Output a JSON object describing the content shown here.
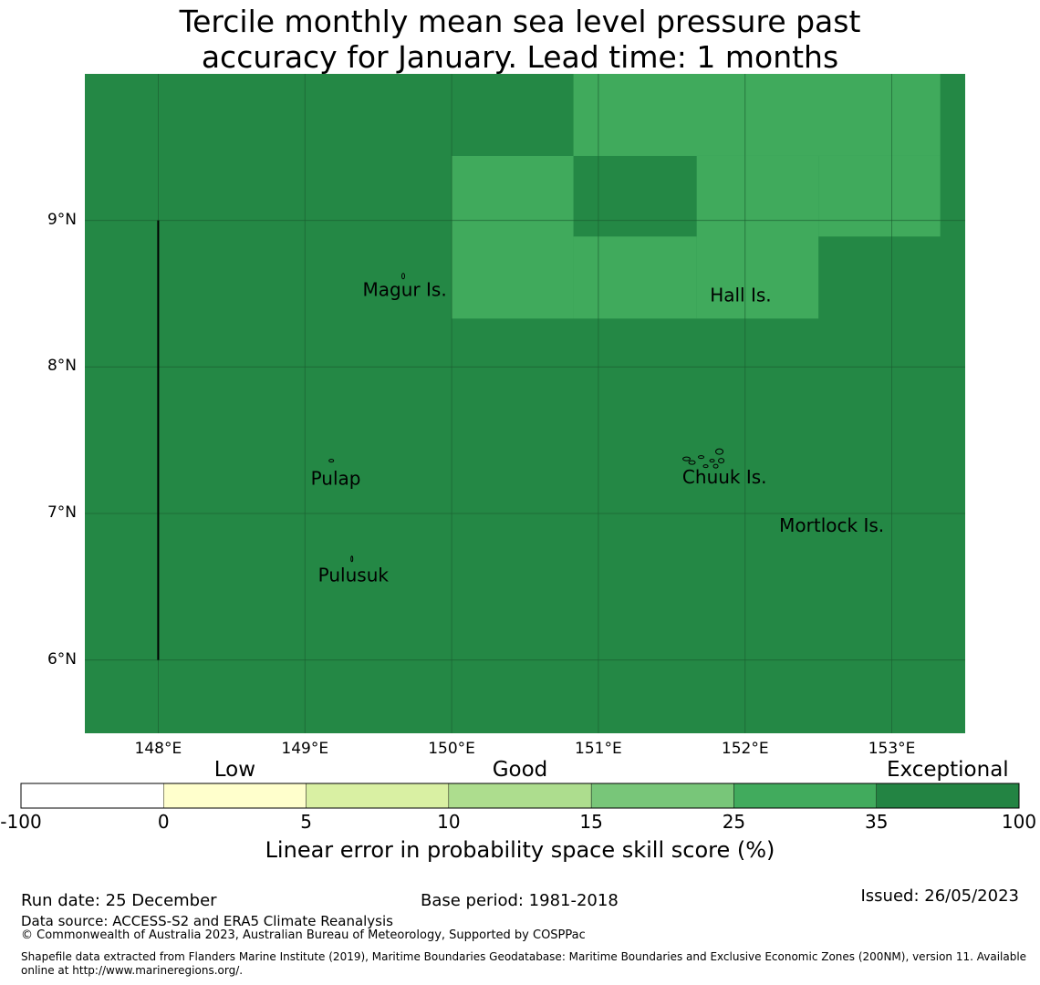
{
  "title": {
    "line1": "Tercile monthly mean sea level pressure past",
    "line2": "accuracy for January. Lead time: 1 months"
  },
  "map": {
    "lon_min": 147.5,
    "lon_max": 153.5,
    "lat_min": 5.5,
    "lat_max": 10.0,
    "x_ticks": [
      {
        "value": 148,
        "label": "148°E"
      },
      {
        "value": 149,
        "label": "149°E"
      },
      {
        "value": 150,
        "label": "150°E"
      },
      {
        "value": 151,
        "label": "151°E"
      },
      {
        "value": 152,
        "label": "152°E"
      },
      {
        "value": 153,
        "label": "153°E"
      }
    ],
    "y_ticks": [
      {
        "value": 9,
        "label": "9°N"
      },
      {
        "value": 8,
        "label": "8°N"
      },
      {
        "value": 7,
        "label": "7°N"
      },
      {
        "value": 6,
        "label": "6°N"
      }
    ],
    "background_color": "#248845",
    "highlight_color": "#40aa5c",
    "skill_cells": [
      {
        "lon0": 150.83,
        "lon1": 153.33,
        "lat0": 9.44,
        "lat1": 10.0,
        "category": "25 to 35"
      },
      {
        "lon0": 150.0,
        "lon1": 150.83,
        "lat0": 8.33,
        "lat1": 9.44,
        "category": "25 to 35"
      },
      {
        "lon0": 150.83,
        "lon1": 151.67,
        "lat0": 8.33,
        "lat1": 8.89,
        "category": "25 to 35"
      },
      {
        "lon0": 151.67,
        "lon1": 152.5,
        "lat0": 8.33,
        "lat1": 9.44,
        "category": "25 to 35"
      },
      {
        "lon0": 152.5,
        "lon1": 153.33,
        "lat0": 8.89,
        "lat1": 9.44,
        "category": "25 to 35"
      }
    ],
    "boundary_line": {
      "lon": 148.0,
      "lat_from": 6.0,
      "lat_to": 9.0
    },
    "places": [
      {
        "name": "Magur Is.",
        "lon": 149.68,
        "lat": 8.52
      },
      {
        "name": "Hall Is.",
        "lon": 151.97,
        "lat": 8.48
      },
      {
        "name": "Pulap",
        "lon": 149.21,
        "lat": 7.23
      },
      {
        "name": "Chuuk Is.",
        "lon": 151.86,
        "lat": 7.24
      },
      {
        "name": "Mortlock Is.",
        "lon": 152.59,
        "lat": 6.91
      },
      {
        "name": "Pulusuk",
        "lon": 149.33,
        "lat": 6.57
      }
    ]
  },
  "colorbar": {
    "categories": [
      {
        "label": "Low",
        "at": 1.5
      },
      {
        "label": "Good",
        "at": 3.5
      },
      {
        "label": "Exceptional",
        "at": 6.5
      }
    ],
    "segments": [
      {
        "from": "-100",
        "to": "0",
        "color": "#ffffff"
      },
      {
        "from": "0",
        "to": "5",
        "color": "#ffffcc"
      },
      {
        "from": "5",
        "to": "10",
        "color": "#d9f0a3"
      },
      {
        "from": "10",
        "to": "15",
        "color": "#addd8e"
      },
      {
        "from": "15",
        "to": "25",
        "color": "#78c679"
      },
      {
        "from": "25",
        "to": "35",
        "color": "#41ab5d"
      },
      {
        "from": "35",
        "to": "100",
        "color": "#238443"
      }
    ],
    "tick_labels": [
      "-100",
      "0",
      "5",
      "10",
      "15",
      "25",
      "35",
      "100"
    ],
    "title": "Linear error in probability space skill score (%)"
  },
  "footer": {
    "run_date": "Run date: 25 December",
    "base_period": "Base period: 1981-2018",
    "issued": "Issued: 26/05/2023",
    "data_source": "Data source: ACCESS-S2 and ERA5 Climate Reanalysis",
    "copyright": "© Commonwealth of Australia 2023, Australian Bureau of Meteorology, Supported by COSPPac",
    "shapefile_line1": "Shapefile data extracted from Flanders Marine Institute (2019), Maritime Boundaries Geodatabase: Maritime Boundaries and Exclusive Economic Zones (200NM), version 11. Available",
    "shapefile_line2": "online at http://www.marineregions.org/."
  }
}
